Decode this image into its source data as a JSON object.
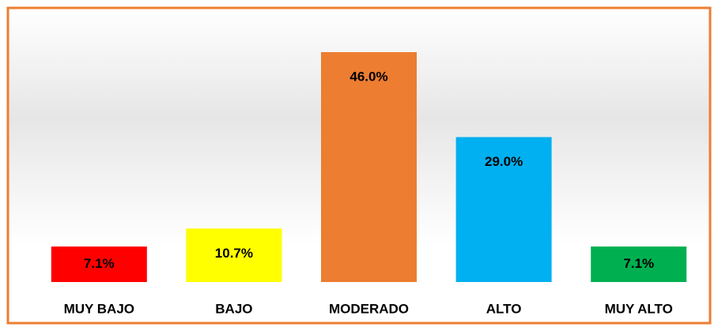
{
  "chart_data": {
    "type": "bar",
    "categories": [
      "MUY BAJO",
      "BAJO",
      "MODERADO",
      "ALTO",
      "MUY ALTO"
    ],
    "values": [
      7.1,
      10.7,
      46.0,
      29.0,
      7.1
    ],
    "value_labels": [
      "7.1%",
      "10.7%",
      "46.0%",
      "29.0%",
      "7.1%"
    ],
    "colors": [
      "#ff0000",
      "#ffff00",
      "#ed7d31",
      "#00b0f0",
      "#00b050"
    ]
  }
}
